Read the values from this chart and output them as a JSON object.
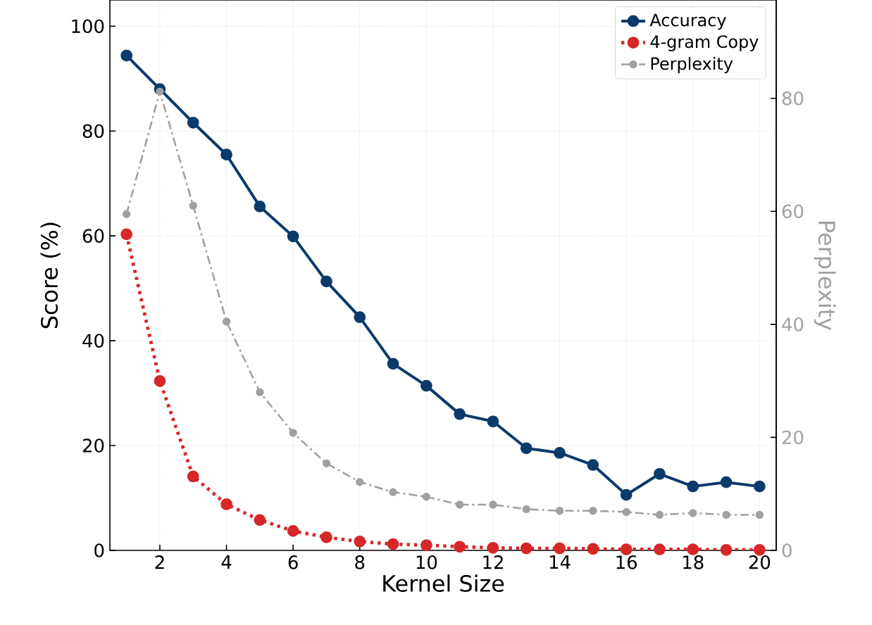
{
  "chart_data": {
    "type": "line",
    "xlabel": "Kernel Size",
    "ylabel": "Score (%)",
    "y2label": "Perplexity",
    "x": [
      1,
      2,
      3,
      4,
      5,
      6,
      7,
      8,
      9,
      10,
      11,
      12,
      13,
      14,
      15,
      16,
      17,
      18,
      19,
      20
    ],
    "xlim": [
      0.5,
      20.5
    ],
    "xticks": [
      2,
      4,
      6,
      8,
      10,
      12,
      14,
      16,
      18,
      20
    ],
    "ylim": [
      0,
      105
    ],
    "yticks": [
      0,
      20,
      40,
      60,
      80,
      100
    ],
    "y2lim": [
      0,
      97.4
    ],
    "y2ticks": [
      0,
      20,
      40,
      60,
      80
    ],
    "grid": true,
    "legend": "top right",
    "marker": "circle",
    "series": [
      {
        "name": "Accuracy",
        "color": "#0b3a6b",
        "line_style": "solid",
        "values": [
          94.4,
          88.0,
          81.6,
          75.5,
          65.6,
          59.9,
          51.3,
          44.5,
          35.6,
          31.4,
          26.0,
          24.6,
          19.5,
          18.6,
          16.3,
          10.6,
          14.6,
          12.2,
          13.0,
          12.2
        ]
      },
      {
        "name": "4-gram Copy",
        "color": "#d62728",
        "line_style": "dotted",
        "values": [
          60.3,
          32.3,
          14.1,
          8.8,
          5.8,
          3.7,
          2.5,
          1.7,
          1.2,
          1.0,
          0.7,
          0.5,
          0.4,
          0.4,
          0.3,
          0.2,
          0.2,
          0.2,
          0.1,
          0.1
        ]
      },
      {
        "name": "Perplexity",
        "color": "#a0a0a0",
        "line_style": "dashdot",
        "axis": "y2",
        "values": [
          59.5,
          81.2,
          61.0,
          40.5,
          28.0,
          20.8,
          15.4,
          12.1,
          10.3,
          9.5,
          8.1,
          8.1,
          7.3,
          7.0,
          7.0,
          6.8,
          6.3,
          6.6,
          6.3,
          6.3
        ]
      }
    ]
  }
}
